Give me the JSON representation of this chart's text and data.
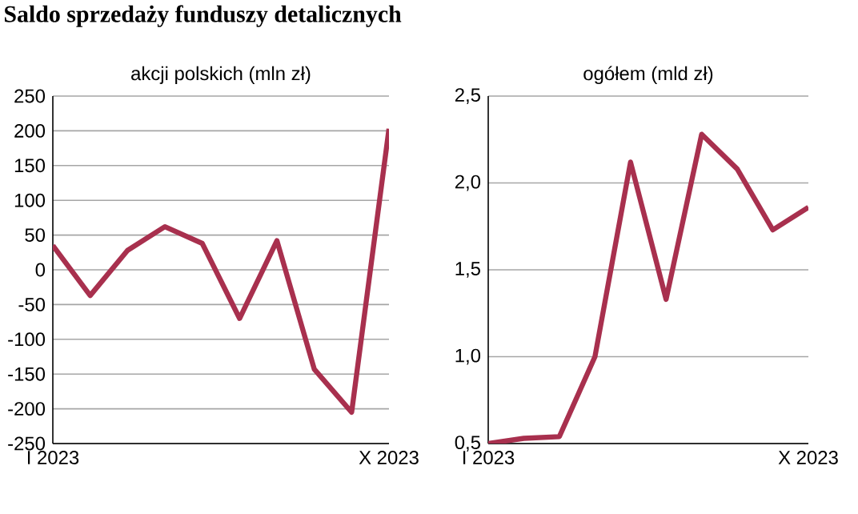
{
  "chart_data": [
    {
      "type": "line",
      "title": "Saldo sprzedaży funduszy detalicznych",
      "subtitle": "akcji polskich (mln zł)",
      "categories": [
        "I 2023",
        null,
        null,
        null,
        null,
        null,
        null,
        null,
        null,
        "X 2023"
      ],
      "series": [
        {
          "color": "#a8304e",
          "values": [
            35,
            -37,
            28,
            62,
            38,
            -70,
            42,
            -143,
            -205,
            203
          ]
        }
      ],
      "ylim": [
        -250,
        250
      ],
      "yticks": [
        -250,
        -200,
        -150,
        -100,
        -50,
        0,
        50,
        100,
        150,
        200,
        250
      ],
      "grid": "y",
      "marker": "none",
      "line_style": "solid"
    },
    {
      "type": "line",
      "title": "ogółem (mld zł)",
      "categories": [
        "I 2023",
        null,
        null,
        null,
        null,
        null,
        null,
        null,
        null,
        "X 2023"
      ],
      "series": [
        {
          "color": "#a8304e",
          "values": [
            0.5,
            0.53,
            0.54,
            1.0,
            2.12,
            1.33,
            2.28,
            2.08,
            1.73,
            1.86
          ]
        }
      ],
      "ylim": [
        0.5,
        2.5
      ],
      "yticks": [
        {
          "value": 0.5,
          "label": "0,5"
        },
        {
          "value": 1.0,
          "label": "1,0"
        },
        {
          "value": 1.5,
          "label": "1,5"
        },
        {
          "value": 2.0,
          "label": "2,0"
        },
        {
          "value": 2.5,
          "label": "2,5"
        }
      ],
      "grid": "y",
      "marker": "none",
      "line_style": "solid"
    }
  ]
}
